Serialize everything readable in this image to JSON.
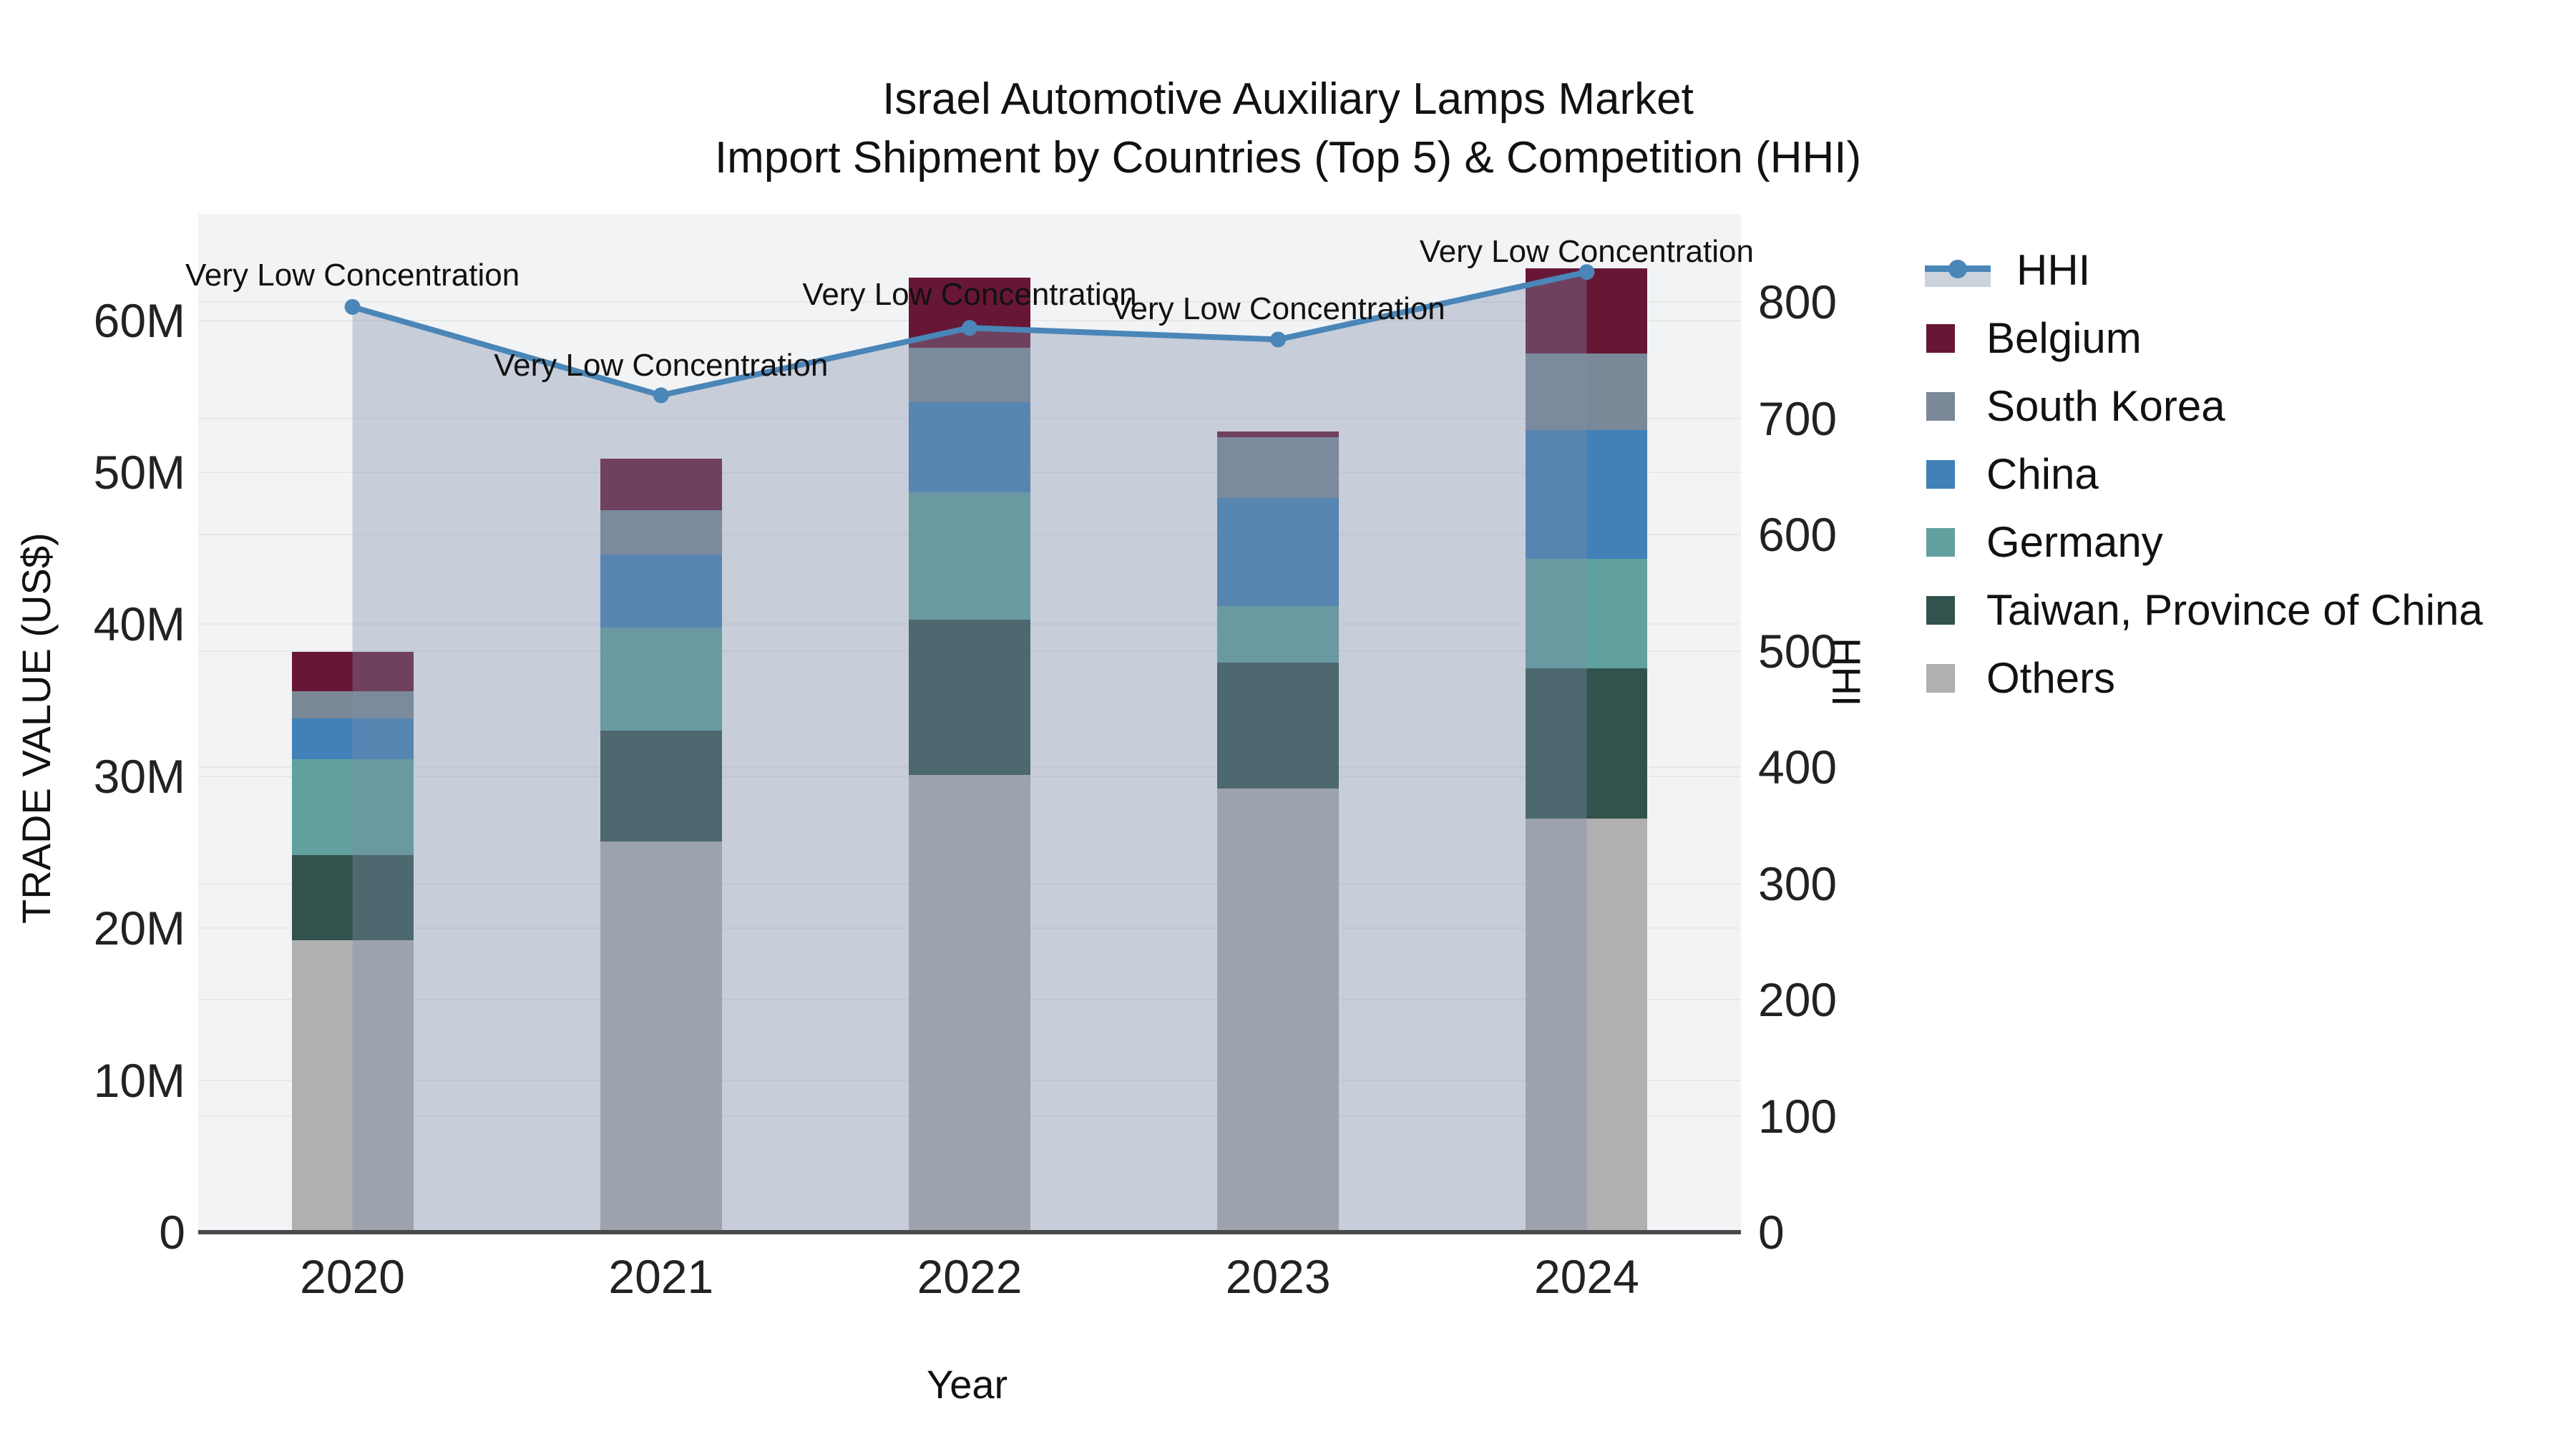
{
  "title": {
    "line1": "Israel Automotive Auxiliary Lamps Market",
    "line2": "Import Shipment by Countries (Top 5) & Competition (HHI)"
  },
  "axes": {
    "x": {
      "title": "Year",
      "categories": [
        "2020",
        "2021",
        "2022",
        "2023",
        "2024"
      ]
    },
    "y_left": {
      "title": "TRADE VALUE (US$)",
      "tick_labels": [
        "0",
        "10M",
        "20M",
        "30M",
        "40M",
        "50M",
        "60M"
      ],
      "tick_values_musd": [
        0,
        10,
        20,
        30,
        40,
        50,
        60
      ],
      "max_musd": 67
    },
    "y_right": {
      "title": "HHI",
      "tick_labels": [
        "0",
        "100",
        "200",
        "300",
        "400",
        "500",
        "600",
        "700",
        "800"
      ],
      "tick_values": [
        0,
        100,
        200,
        300,
        400,
        500,
        600,
        700,
        800
      ],
      "max": 876
    }
  },
  "legend": {
    "items": [
      {
        "label": "HHI",
        "type": "line",
        "color": "#4a86b8",
        "band_color": "#ccd3dd"
      },
      {
        "label": "Belgium",
        "type": "bar",
        "color": "#681635"
      },
      {
        "label": "South Korea",
        "type": "bar",
        "color": "#7a8897"
      },
      {
        "label": "China",
        "type": "bar",
        "color": "#4181b8"
      },
      {
        "label": "Germany",
        "type": "bar",
        "color": "#60a19f"
      },
      {
        "label": "Taiwan, Province of China",
        "type": "bar",
        "color": "#32534d"
      },
      {
        "label": "Others",
        "type": "bar",
        "color": "#b0b0b0"
      }
    ]
  },
  "annotations": [
    {
      "year": "2020",
      "text": "Very Low Concentration"
    },
    {
      "year": "2021",
      "text": "Very Low Concentration"
    },
    {
      "year": "2022",
      "text": "Very Low Concentration"
    },
    {
      "year": "2023",
      "text": "Very Low Concentration"
    },
    {
      "year": "2024",
      "text": "Very Low Concentration"
    }
  ],
  "chart_data": {
    "type": "combo-stacked-bar-line",
    "categories": [
      "2020",
      "2021",
      "2022",
      "2023",
      "2024"
    ],
    "bar_unit": "million US$",
    "stack_order_bottom_to_top": [
      "Others",
      "Taiwan, Province of China",
      "Germany",
      "China",
      "South Korea",
      "Belgium"
    ],
    "series": [
      {
        "name": "Others",
        "color": "#b0b0b0",
        "values": [
          19.2,
          25.7,
          30.1,
          29.2,
          27.2
        ]
      },
      {
        "name": "Taiwan, Province of China",
        "color": "#32534d",
        "values": [
          5.6,
          7.3,
          10.2,
          8.3,
          9.9
        ]
      },
      {
        "name": "Germany",
        "color": "#60a19f",
        "values": [
          6.3,
          6.8,
          8.4,
          3.7,
          7.2
        ]
      },
      {
        "name": "China",
        "color": "#4181b8",
        "values": [
          2.7,
          4.8,
          5.9,
          7.1,
          8.5
        ]
      },
      {
        "name": "South Korea",
        "color": "#7a8897",
        "values": [
          1.8,
          2.9,
          3.6,
          4.0,
          5.0
        ]
      },
      {
        "name": "Belgium",
        "color": "#681635",
        "values": [
          2.6,
          3.4,
          4.6,
          0.4,
          5.6
        ]
      }
    ],
    "bar_totals_musd": [
      38.2,
      50.9,
      62.8,
      52.7,
      63.4
    ],
    "line_series": {
      "name": "HHI",
      "color": "#4a86b8",
      "area_fill": "rgba(126,140,169,0.37)",
      "values": [
        796,
        720,
        778,
        768,
        826
      ]
    },
    "title": "Israel Automotive Auxiliary Lamps Market — Import Shipment by Countries (Top 5) & Competition (HHI)",
    "xlabel": "Year",
    "ylabel_left": "TRADE VALUE (US$)",
    "ylabel_right": "HHI",
    "ylim_left_musd": [
      0,
      67
    ],
    "ylim_right": [
      0,
      876
    ],
    "grid": true,
    "legend_position": "outside-top-right",
    "plot_background": "#f2f3f5"
  }
}
